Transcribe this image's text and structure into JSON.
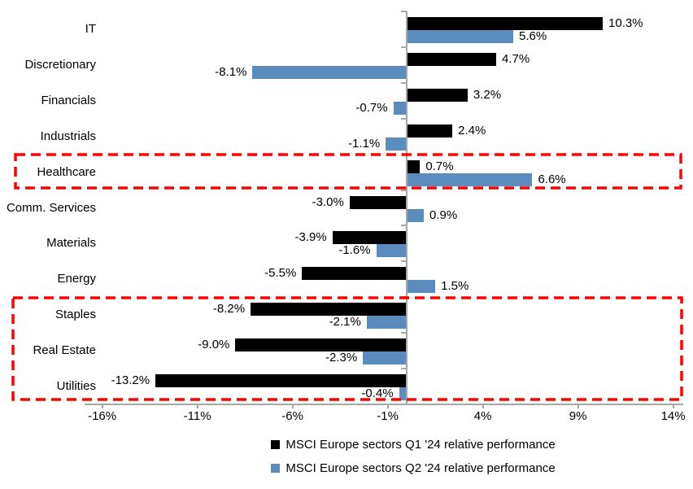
{
  "chart_data": {
    "type": "bar",
    "orientation": "horizontal",
    "title": "",
    "categories": [
      "IT",
      "Discretionary",
      "Financials",
      "Industrials",
      "Healthcare",
      "Comm. Services",
      "Materials",
      "Energy",
      "Staples",
      "Real Estate",
      "Utilities"
    ],
    "series": [
      {
        "name": "MSCI Europe sectors Q1 '24 relative performance",
        "color": "#000000",
        "values": [
          10.3,
          4.7,
          3.2,
          2.4,
          0.7,
          -3.0,
          -3.9,
          -5.5,
          -8.2,
          -9.0,
          -13.2
        ],
        "labels": [
          "10.3%",
          "4.7%",
          "3.2%",
          "2.4%",
          "0.7%",
          "-3.0%",
          "-3.9%",
          "-5.5%",
          "-8.2%",
          "-9.0%",
          "-13.2%"
        ]
      },
      {
        "name": "MSCI Europe sectors Q2 '24 relative performance",
        "color": "#5B8CBE",
        "values": [
          5.6,
          -8.1,
          -0.7,
          -1.1,
          6.6,
          0.9,
          -1.6,
          1.5,
          -2.1,
          -2.3,
          -0.4
        ],
        "labels": [
          "5.6%",
          "-8.1%",
          "-0.7%",
          "-1.1%",
          "6.6%",
          "0.9%",
          "-1.6%",
          "1.5%",
          "-2.1%",
          "-2.3%",
          "-0.4%"
        ]
      }
    ],
    "x_ticks": [
      -16,
      -11,
      -6,
      -1,
      4,
      9,
      14
    ],
    "x_tick_labels": [
      "-16%",
      "-11%",
      "-6%",
      "-1%",
      "4%",
      "9%",
      "14%"
    ],
    "xlim": [
      -17,
      15
    ],
    "grid": false,
    "legend_position": "bottom",
    "background": "#FFFFFF",
    "axis_color": "#A6A6A6",
    "highlight_color": "#FF0000",
    "highlighted_groups": [
      [
        "Healthcare"
      ],
      [
        "Staples",
        "Real Estate",
        "Utilities"
      ]
    ]
  }
}
